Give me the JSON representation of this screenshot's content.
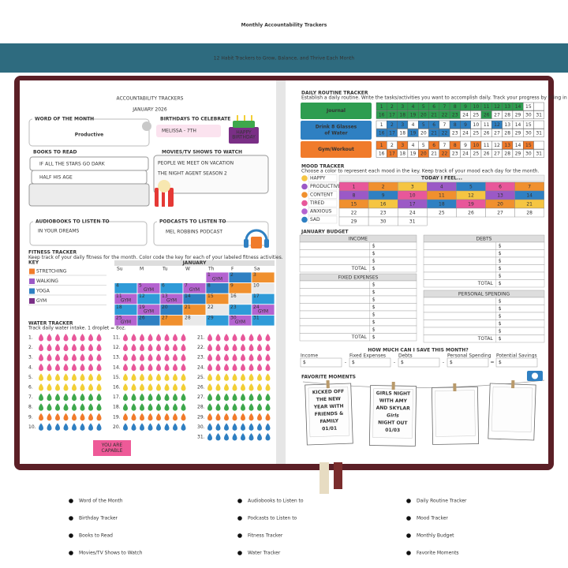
{
  "header": {
    "title": "Monthly Accountability Trackers",
    "subtitle": "12 Habit Trackers to Grow, Balance, and Thrive Each Month"
  },
  "left_page": {
    "title": "ACCOUNTABILITY TRACKERS",
    "month": "JANUARY 2026",
    "word_of_month": {
      "label": "WORD OF THE MONTH",
      "value": "Productive"
    },
    "birthdays": {
      "label": "BIRTHDAYS TO CELEBRATE",
      "entries": [
        "MELISSA - 7TH"
      ],
      "cake_text": [
        "HAPPY",
        "BIRTHDAY"
      ]
    },
    "books": {
      "label": "BOOKS TO READ",
      "entries": [
        "IF ALL THE STARS GO DARK",
        "HALF HIS AGE"
      ]
    },
    "movies": {
      "label": "MOVIES/TV SHOWS TO WATCH",
      "entries": [
        "PEOPLE WE MEET ON VACATION",
        "THE NIGHT AGENT SEASON 2"
      ]
    },
    "audiobooks": {
      "label": "AUDIOBOOKS TO LISTEN TO",
      "entries": [
        "IN YOUR DREAMS"
      ]
    },
    "podcasts": {
      "label": "PODCASTS TO LISTEN TO",
      "entries": [
        "MEL ROBBINS PODCAST"
      ]
    },
    "fitness": {
      "label": "FITNESS TRACKER",
      "description": "Keep track of your daily fitness for the month. Color code the key for each of your labeled fitness activities.",
      "key_label": "KEY",
      "key": [
        "STRETCHING",
        "WALKING",
        "YOGA",
        "GYM"
      ],
      "month": "JANUARY",
      "weekdays": [
        "Su",
        "M",
        "Tu",
        "W",
        "Th",
        "F",
        "Sa"
      ],
      "days": [
        null,
        null,
        null,
        null,
        1,
        2,
        3,
        4,
        5,
        6,
        7,
        8,
        9,
        10,
        11,
        12,
        13,
        14,
        15,
        16,
        17,
        18,
        19,
        20,
        21,
        22,
        23,
        24,
        25,
        26,
        27,
        28,
        29,
        30,
        31
      ]
    },
    "water": {
      "label": "WATER TRACKER",
      "description": "Track daily water intake. 1 droplet = 8oz.",
      "days": [
        "1.",
        "2.",
        "3.",
        "4.",
        "5.",
        "6.",
        "7.",
        "8.",
        "9.",
        "10.",
        "11.",
        "12.",
        "13.",
        "14.",
        "15.",
        "16.",
        "17.",
        "18.",
        "19.",
        "20.",
        "21.",
        "22.",
        "23.",
        "24.",
        "25.",
        "26.",
        "27.",
        "28.",
        "29.",
        "30.",
        "31."
      ]
    },
    "badge": [
      "YOU ARE",
      "CAPABLE"
    ]
  },
  "right_page": {
    "routine": {
      "label": "DAILY ROUTINE TRACKER",
      "description": "Establish a daily routine. Write the tasks/activities you want to accomplish daily. Track your progress by filling in the days you complete them.",
      "habits": [
        [
          "Journal"
        ],
        [
          "Drink 8 Glasses",
          "of Water"
        ],
        [
          "Gym/Workout"
        ]
      ],
      "days": [
        1,
        2,
        3,
        4,
        5,
        6,
        7,
        8,
        9,
        10,
        11,
        12,
        13,
        14,
        15,
        16,
        17,
        18,
        19,
        20,
        21,
        22,
        23,
        24,
        25,
        26,
        27,
        28,
        29,
        30,
        31
      ]
    },
    "mood": {
      "label": "MOOD TRACKER",
      "description": "Choose a color to represent each mood in the key. Keep track of your mood each day for the month.",
      "key": [
        "HAPPY",
        "PRODUCTIVE",
        "CONTENT",
        "TIRED",
        "ANXIOUS",
        "SAD"
      ],
      "header": "TODAY I FEEL...",
      "days": [
        1,
        2,
        3,
        4,
        5,
        6,
        7,
        8,
        9,
        10,
        11,
        12,
        13,
        14,
        15,
        16,
        17,
        18,
        19,
        20,
        21,
        22,
        23,
        24,
        25,
        26,
        27,
        28,
        29,
        30,
        31
      ]
    },
    "budget": {
      "label": "JANUARY BUDGET",
      "currency": "$",
      "total_label": "TOTAL",
      "tables": [
        "INCOME",
        "DEBTS",
        "FIXED EXPENSES",
        "PERSONAL SPENDING"
      ]
    },
    "savings": {
      "title": "HOW MUCH CAN I SAVE THIS MONTH?",
      "labels": [
        "Income",
        "Fixed Expenses",
        "Debts",
        "Personal Spending",
        "Potential Savings"
      ],
      "operators": [
        "-",
        "-",
        "-",
        "="
      ]
    },
    "moments": {
      "label": "FAVORITE MOMENTS",
      "notes": [
        [
          "KICKED OFF",
          "THE NEW",
          "YEAR WITH",
          "FRIENDS &",
          "FAMILY",
          "01/01"
        ],
        [
          "GIRLS NIGHT",
          "WITH AMY",
          "AND SKYLAR",
          "Girls",
          "NIGHT OUT",
          "01/03"
        ]
      ]
    }
  },
  "features": [
    "Word of the Month",
    "Birthday Tracker",
    "Books to Read",
    "Movies/TV Shows to Watch",
    "Audiobooks to Listen to",
    "Podcasts to Listen to",
    "Fitness Tracker",
    "Water Tracker",
    "Daily Routine Tracker",
    "Mood  Tracker",
    "Monthly Budget",
    "Favorite Moments"
  ]
}
